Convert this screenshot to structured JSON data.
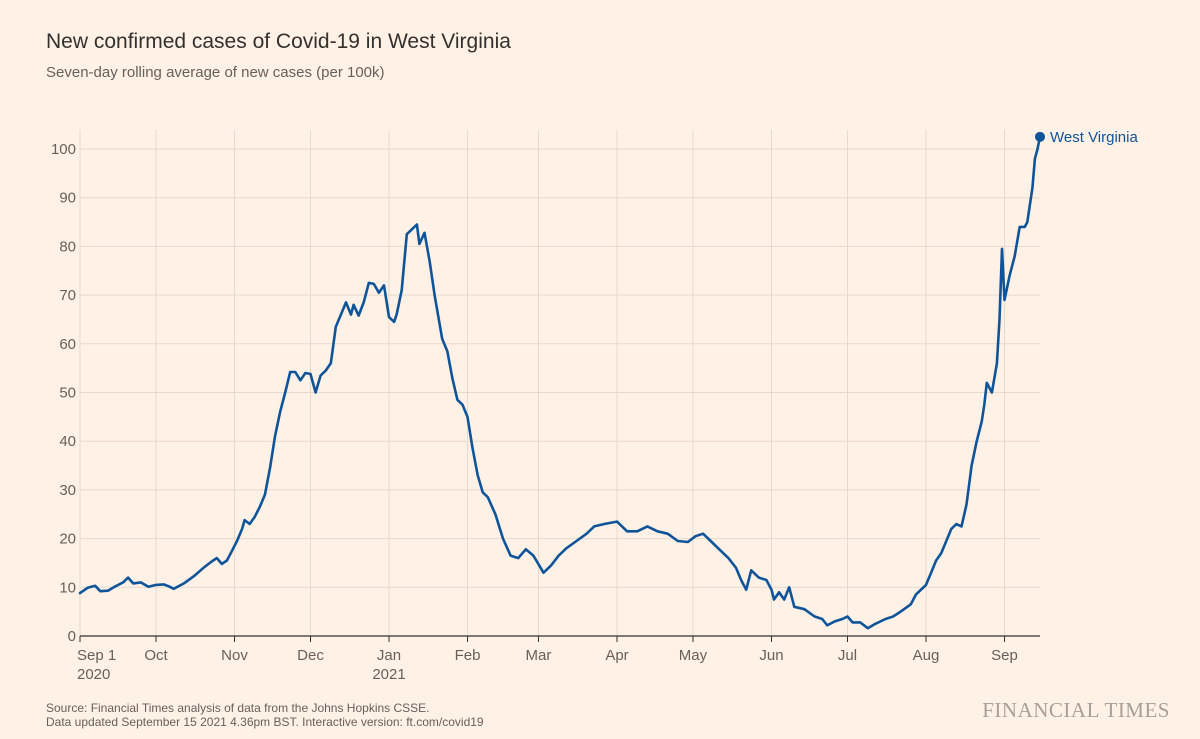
{
  "title": "New confirmed cases of Covid-19 in West Virginia",
  "subtitle": "Seven-day rolling average of new cases (per 100k)",
  "source_line1": "Source: Financial Times analysis of data from the Johns Hopkins CSSE.",
  "source_line2": "Data updated September 15 2021 4.36pm BST. Interactive version: ft.com/covid19",
  "brand": "FINANCIAL TIMES",
  "colors": {
    "background": "#fff1e5",
    "line": "#0f5499",
    "grid": "#e6d9ce",
    "axis": "#33302e",
    "text": "#66605c"
  },
  "chart_data": {
    "type": "line",
    "title": "New confirmed cases of Covid-19 in West Virginia",
    "subtitle": "Seven-day rolling average of new cases (per 100k)",
    "xlabel": "",
    "ylabel": "",
    "ylim": [
      0,
      100
    ],
    "yticks": [
      0,
      10,
      20,
      30,
      40,
      50,
      60,
      70,
      80,
      90,
      100
    ],
    "xlim": [
      "2020-09-01",
      "2021-09-15"
    ],
    "xticks": [
      {
        "date": "2020-09-01",
        "label": "Sep 1",
        "sublabel": "2020"
      },
      {
        "date": "2020-10-01",
        "label": "Oct",
        "sublabel": ""
      },
      {
        "date": "2020-11-01",
        "label": "Nov",
        "sublabel": ""
      },
      {
        "date": "2020-12-01",
        "label": "Dec",
        "sublabel": ""
      },
      {
        "date": "2021-01-01",
        "label": "Jan",
        "sublabel": "2021"
      },
      {
        "date": "2021-02-01",
        "label": "Feb",
        "sublabel": ""
      },
      {
        "date": "2021-03-01",
        "label": "Mar",
        "sublabel": ""
      },
      {
        "date": "2021-04-01",
        "label": "Apr",
        "sublabel": ""
      },
      {
        "date": "2021-05-01",
        "label": "May",
        "sublabel": ""
      },
      {
        "date": "2021-06-01",
        "label": "Jun",
        "sublabel": ""
      },
      {
        "date": "2021-07-01",
        "label": "Jul",
        "sublabel": ""
      },
      {
        "date": "2021-08-01",
        "label": "Aug",
        "sublabel": ""
      },
      {
        "date": "2021-09-01",
        "label": "Sep",
        "sublabel": ""
      }
    ],
    "grid": true,
    "legend": "end-of-line label",
    "series": [
      {
        "name": "West Virginia",
        "color": "#0f5499",
        "points": [
          [
            "2020-09-01",
            8.8
          ],
          [
            "2020-09-04",
            9.9
          ],
          [
            "2020-09-07",
            10.3
          ],
          [
            "2020-09-09",
            9.2
          ],
          [
            "2020-09-12",
            9.3
          ],
          [
            "2020-09-15",
            10.2
          ],
          [
            "2020-09-18",
            11.0
          ],
          [
            "2020-09-20",
            12.0
          ],
          [
            "2020-09-22",
            10.8
          ],
          [
            "2020-09-25",
            11.0
          ],
          [
            "2020-09-28",
            10.1
          ],
          [
            "2020-10-01",
            10.5
          ],
          [
            "2020-10-04",
            10.6
          ],
          [
            "2020-10-06",
            10.2
          ],
          [
            "2020-10-08",
            9.7
          ],
          [
            "2020-10-12",
            10.8
          ],
          [
            "2020-10-16",
            12.3
          ],
          [
            "2020-10-20",
            14.1
          ],
          [
            "2020-10-23",
            15.3
          ],
          [
            "2020-10-25",
            16.0
          ],
          [
            "2020-10-27",
            14.8
          ],
          [
            "2020-10-29",
            15.5
          ],
          [
            "2020-10-31",
            17.5
          ],
          [
            "2020-11-02",
            19.5
          ],
          [
            "2020-11-04",
            22.0
          ],
          [
            "2020-11-05",
            23.8
          ],
          [
            "2020-11-07",
            23.0
          ],
          [
            "2020-11-09",
            24.5
          ],
          [
            "2020-11-11",
            26.5
          ],
          [
            "2020-11-13",
            29.0
          ],
          [
            "2020-11-15",
            34.5
          ],
          [
            "2020-11-17",
            41.0
          ],
          [
            "2020-11-19",
            46.0
          ],
          [
            "2020-11-21",
            50.0
          ],
          [
            "2020-11-23",
            54.2
          ],
          [
            "2020-11-25",
            54.2
          ],
          [
            "2020-11-27",
            52.5
          ],
          [
            "2020-11-29",
            54.0
          ],
          [
            "2020-12-01",
            53.8
          ],
          [
            "2020-12-03",
            50.0
          ],
          [
            "2020-12-05",
            53.5
          ],
          [
            "2020-12-07",
            54.5
          ],
          [
            "2020-12-09",
            56.0
          ],
          [
            "2020-12-11",
            63.5
          ],
          [
            "2020-12-13",
            66.0
          ],
          [
            "2020-12-15",
            68.5
          ],
          [
            "2020-12-17",
            66.0
          ],
          [
            "2020-12-18",
            68.0
          ],
          [
            "2020-12-20",
            65.8
          ],
          [
            "2020-12-22",
            68.5
          ],
          [
            "2020-12-24",
            72.5
          ],
          [
            "2020-12-26",
            72.3
          ],
          [
            "2020-12-28",
            70.5
          ],
          [
            "2020-12-30",
            72.0
          ],
          [
            "2021-01-01",
            65.5
          ],
          [
            "2021-01-03",
            64.5
          ],
          [
            "2021-01-04",
            66.0
          ],
          [
            "2021-01-06",
            71.0
          ],
          [
            "2021-01-08",
            82.5
          ],
          [
            "2021-01-10",
            83.5
          ],
          [
            "2021-01-12",
            84.5
          ],
          [
            "2021-01-13",
            80.5
          ],
          [
            "2021-01-15",
            82.8
          ],
          [
            "2021-01-17",
            77.0
          ],
          [
            "2021-01-19",
            70.0
          ],
          [
            "2021-01-22",
            61.0
          ],
          [
            "2021-01-24",
            58.5
          ],
          [
            "2021-01-26",
            53.0
          ],
          [
            "2021-01-28",
            48.5
          ],
          [
            "2021-01-30",
            47.5
          ],
          [
            "2021-02-01",
            45.0
          ],
          [
            "2021-02-03",
            38.5
          ],
          [
            "2021-02-05",
            33.0
          ],
          [
            "2021-02-07",
            29.5
          ],
          [
            "2021-02-09",
            28.5
          ],
          [
            "2021-02-12",
            25.0
          ],
          [
            "2021-02-15",
            20.0
          ],
          [
            "2021-02-18",
            16.5
          ],
          [
            "2021-02-21",
            16.0
          ],
          [
            "2021-02-24",
            17.8
          ],
          [
            "2021-02-27",
            16.5
          ],
          [
            "2021-03-03",
            13.0
          ],
          [
            "2021-03-06",
            14.5
          ],
          [
            "2021-03-09",
            16.5
          ],
          [
            "2021-03-12",
            18.0
          ],
          [
            "2021-03-16",
            19.5
          ],
          [
            "2021-03-20",
            21.0
          ],
          [
            "2021-03-23",
            22.5
          ],
          [
            "2021-03-27",
            23.0
          ],
          [
            "2021-04-01",
            23.5
          ],
          [
            "2021-04-05",
            21.5
          ],
          [
            "2021-04-09",
            21.5
          ],
          [
            "2021-04-13",
            22.5
          ],
          [
            "2021-04-17",
            21.5
          ],
          [
            "2021-04-21",
            21.0
          ],
          [
            "2021-04-25",
            19.5
          ],
          [
            "2021-04-29",
            19.3
          ],
          [
            "2021-05-02",
            20.5
          ],
          [
            "2021-05-05",
            21.0
          ],
          [
            "2021-05-08",
            19.5
          ],
          [
            "2021-05-12",
            17.5
          ],
          [
            "2021-05-15",
            16.0
          ],
          [
            "2021-05-18",
            14.0
          ],
          [
            "2021-05-20",
            11.5
          ],
          [
            "2021-05-22",
            9.5
          ],
          [
            "2021-05-24",
            13.5
          ],
          [
            "2021-05-27",
            12.0
          ],
          [
            "2021-05-30",
            11.5
          ],
          [
            "2021-06-01",
            9.5
          ],
          [
            "2021-06-02",
            7.5
          ],
          [
            "2021-06-04",
            9.0
          ],
          [
            "2021-06-06",
            7.5
          ],
          [
            "2021-06-08",
            10.0
          ],
          [
            "2021-06-10",
            6.0
          ],
          [
            "2021-06-14",
            5.5
          ],
          [
            "2021-06-18",
            4.0
          ],
          [
            "2021-06-21",
            3.5
          ],
          [
            "2021-06-23",
            2.2
          ],
          [
            "2021-06-26",
            3.0
          ],
          [
            "2021-06-29",
            3.5
          ],
          [
            "2021-07-01",
            4.0
          ],
          [
            "2021-07-03",
            2.8
          ],
          [
            "2021-07-06",
            2.8
          ],
          [
            "2021-07-09",
            1.6
          ],
          [
            "2021-07-12",
            2.5
          ],
          [
            "2021-07-16",
            3.5
          ],
          [
            "2021-07-19",
            4.0
          ],
          [
            "2021-07-22",
            5.0
          ],
          [
            "2021-07-26",
            6.5
          ],
          [
            "2021-07-28",
            8.5
          ],
          [
            "2021-08-01",
            10.5
          ],
          [
            "2021-08-03",
            13.0
          ],
          [
            "2021-08-05",
            15.5
          ],
          [
            "2021-08-07",
            17.0
          ],
          [
            "2021-08-09",
            19.5
          ],
          [
            "2021-08-11",
            22.0
          ],
          [
            "2021-08-13",
            23.0
          ],
          [
            "2021-08-15",
            22.5
          ],
          [
            "2021-08-17",
            27.0
          ],
          [
            "2021-08-19",
            35.0
          ],
          [
            "2021-08-21",
            40.0
          ],
          [
            "2021-08-23",
            44.0
          ],
          [
            "2021-08-24",
            47.5
          ],
          [
            "2021-08-25",
            52.0
          ],
          [
            "2021-08-27",
            50.0
          ],
          [
            "2021-08-29",
            56.0
          ],
          [
            "2021-08-30",
            65.0
          ],
          [
            "2021-08-31",
            79.5
          ],
          [
            "2021-09-01",
            69.0
          ],
          [
            "2021-09-03",
            74.0
          ],
          [
            "2021-09-05",
            78.0
          ],
          [
            "2021-09-07",
            84.0
          ],
          [
            "2021-09-09",
            84.0
          ],
          [
            "2021-09-10",
            85.0
          ],
          [
            "2021-09-12",
            92.0
          ],
          [
            "2021-09-13",
            98.0
          ],
          [
            "2021-09-14",
            100.0
          ],
          [
            "2021-09-15",
            102.5
          ]
        ]
      }
    ]
  }
}
